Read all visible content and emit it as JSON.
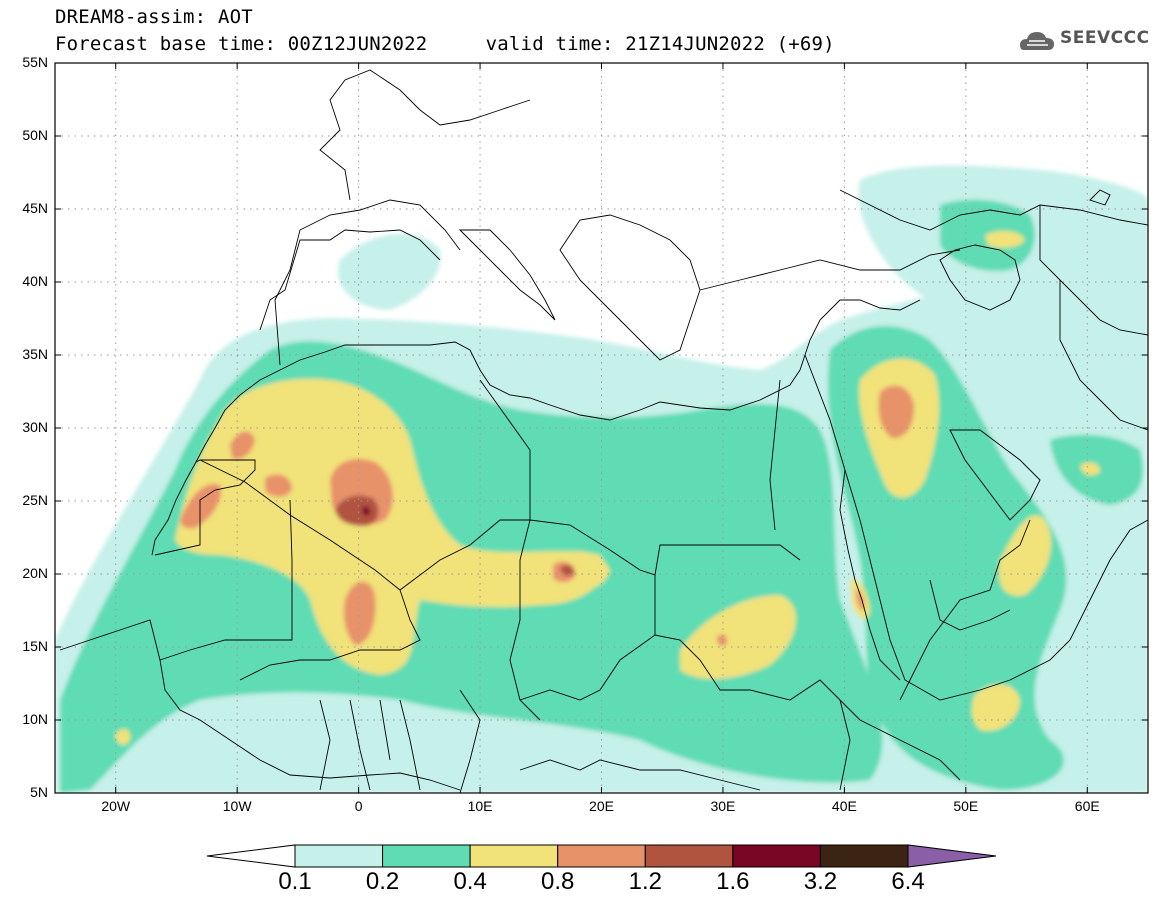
{
  "header": {
    "title_line1": "DREAM8-assim: AOT",
    "title_line2": "Forecast base time: 00Z12JUN2022     valid time: 21Z14JUN2022 (+69)",
    "logo_text": "SEEVCCC",
    "logo_icon": "cloud-icon"
  },
  "map": {
    "variable": "AOT",
    "latitude_labels": [
      "55N",
      "50N",
      "45N",
      "40N",
      "35N",
      "30N",
      "25N",
      "20N",
      "15N",
      "10N",
      "5N"
    ],
    "latitudes": [
      55,
      50,
      45,
      40,
      35,
      30,
      25,
      20,
      15,
      10,
      5
    ],
    "longitude_labels": [
      "20W",
      "10W",
      "0",
      "10E",
      "20E",
      "30E",
      "40E",
      "50E",
      "60E"
    ],
    "longitudes": [
      -20,
      -10,
      0,
      10,
      20,
      30,
      40,
      50,
      60
    ],
    "lon_range": [
      -25,
      65
    ],
    "lat_range": [
      5,
      55
    ],
    "grid": "dotted",
    "coastlines_and_borders": true
  },
  "colorbar": {
    "levels": [
      "0.1",
      "0.2",
      "0.4",
      "0.8",
      "1.2",
      "1.6",
      "3.2",
      "6.4"
    ],
    "colors": [
      "#c6f0ea",
      "#5fdcb3",
      "#f1e27a",
      "#e8926a",
      "#b0533f",
      "#7a0626",
      "#3b2414",
      "#8a5fa8"
    ],
    "under_color": "#ffffff",
    "extend": "both"
  }
}
